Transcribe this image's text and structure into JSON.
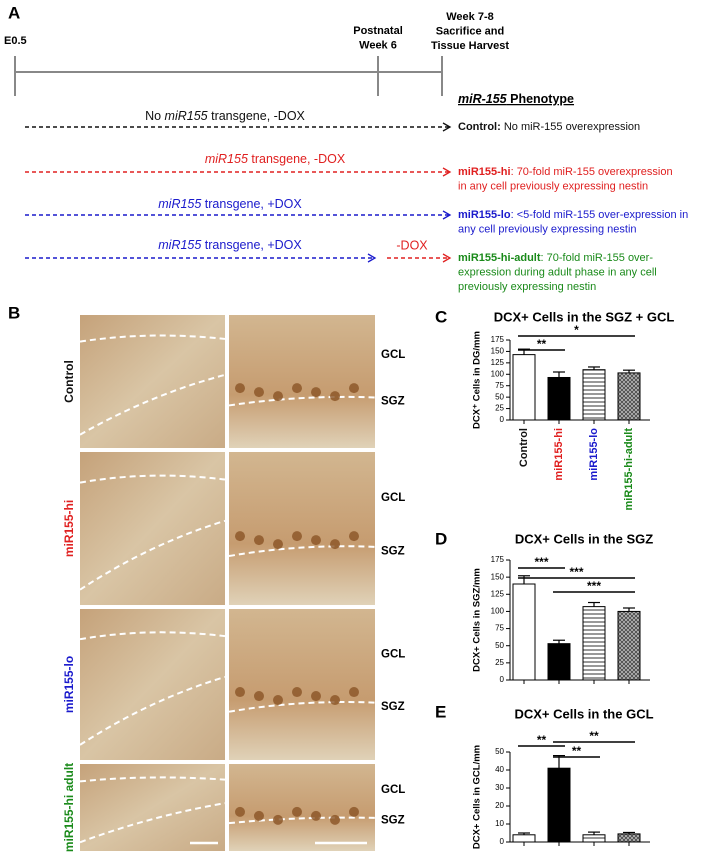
{
  "timeline": {
    "panel": "A",
    "points": [
      {
        "lines": [
          "E0.5"
        ]
      },
      {
        "lines": [
          "Postnatal",
          "Week 6"
        ]
      },
      {
        "lines": [
          "Week 7-8",
          "Sacrifice and",
          "Tissue Harvest"
        ]
      }
    ],
    "phenotype_header": {
      "italic": "miR-155",
      "rest": " Phenotype"
    },
    "rows": [
      {
        "arrow_color": "#111111",
        "label": {
          "pre": "No ",
          "italic": "miR155",
          "post": " transgene, -DOX"
        },
        "result": {
          "color": "#111111",
          "bold": "Control:",
          "lines": [
            " No miR-155 overexpression"
          ]
        }
      },
      {
        "arrow_color": "#e02020",
        "label": {
          "pre": "",
          "italic": "miR155",
          "post": " transgene, -DOX"
        },
        "result": {
          "color": "#e02020",
          "bold": "miR155-hi",
          "lines": [
            ": 70-fold miR-155 overexpression",
            "in any cell previously expressing nestin"
          ]
        }
      },
      {
        "arrow_color": "#1a1acc",
        "label": {
          "pre": "",
          "italic": "miR155",
          "post": " transgene, +DOX"
        },
        "result": {
          "color": "#1a1acc",
          "bold": "miR155-lo",
          "lines": [
            ": <5-fold miR-155 over-expression in",
            "any cell previously expressing nestin"
          ]
        }
      },
      {
        "arrow_color": "#1a1acc",
        "label": {
          "pre": "",
          "italic": "miR155",
          "post": " transgene, +DOX"
        },
        "extension": {
          "label": "-DOX",
          "color": "#e02020"
        },
        "result": {
          "color": "#1a8a1a",
          "bold": "miR155-hi-adult",
          "lines": [
            ": 70-fold miR-155 over-",
            "expression during adult phase in any cell",
            "previously expressing nestin"
          ]
        }
      }
    ]
  },
  "micrographs": {
    "panel": "B",
    "rows": [
      {
        "label": "Control",
        "color": "#111111",
        "layers": [
          "GCL",
          "SGZ"
        ]
      },
      {
        "label": "miR155-hi",
        "color": "#e02020",
        "layers": [
          "GCL",
          "SGZ"
        ]
      },
      {
        "label": "miR155-lo",
        "color": "#1a1acc",
        "layers": [
          "GCL",
          "SGZ"
        ]
      },
      {
        "label": "miR155-hi adult",
        "color": "#1a8a1a",
        "layers": [
          "GCL",
          "SGZ"
        ]
      }
    ]
  },
  "chart_data": [
    {
      "type": "bar",
      "panel": "C",
      "title": "DCX+ Cells in the SGZ + GCL",
      "ylabel": "DCX⁺ Cells in DG/mm",
      "categories": [
        "Control",
        "miR155-hi",
        "miR155-lo",
        "miR155-hi-adult"
      ],
      "label_colors": [
        "#111111",
        "#e02020",
        "#1a1acc",
        "#1a8a1a"
      ],
      "values": [
        143,
        93,
        110,
        103
      ],
      "errors": [
        12,
        12,
        6,
        6
      ],
      "fills": [
        "white",
        "black",
        "hlines",
        "crosshatch"
      ],
      "ylim": [
        0,
        175
      ],
      "yticks": [
        0,
        25,
        50,
        75,
        100,
        125,
        150,
        175
      ],
      "annotations": [
        "**",
        "*"
      ]
    },
    {
      "type": "bar",
      "panel": "D",
      "title": "DCX+ Cells in the SGZ",
      "ylabel": "DCX+ Cells in SGZ/mm",
      "categories": [
        null,
        null,
        null,
        null
      ],
      "values": [
        140,
        53,
        107,
        100
      ],
      "errors": [
        12,
        5,
        6,
        5
      ],
      "fills": [
        "white",
        "black",
        "hlines",
        "crosshatch"
      ],
      "ylim": [
        0,
        175
      ],
      "yticks": [
        0,
        25,
        50,
        75,
        100,
        125,
        150,
        175
      ],
      "annotations": [
        "***",
        "***",
        "***"
      ]
    },
    {
      "type": "bar",
      "panel": "E",
      "title": "DCX+ Cells in the GCL",
      "ylabel": "DCX+ Cells in GCL/mm",
      "categories": [
        null,
        null,
        null,
        null
      ],
      "values": [
        4,
        41,
        4,
        4.5
      ],
      "errors": [
        1,
        7,
        1.5,
        0.8
      ],
      "fills": [
        "white",
        "black",
        "hlines",
        "crosshatch"
      ],
      "ylim": [
        0,
        50
      ],
      "yticks": [
        0,
        10,
        20,
        30,
        40,
        50
      ],
      "annotations": [
        "**",
        "**",
        "**"
      ]
    }
  ]
}
